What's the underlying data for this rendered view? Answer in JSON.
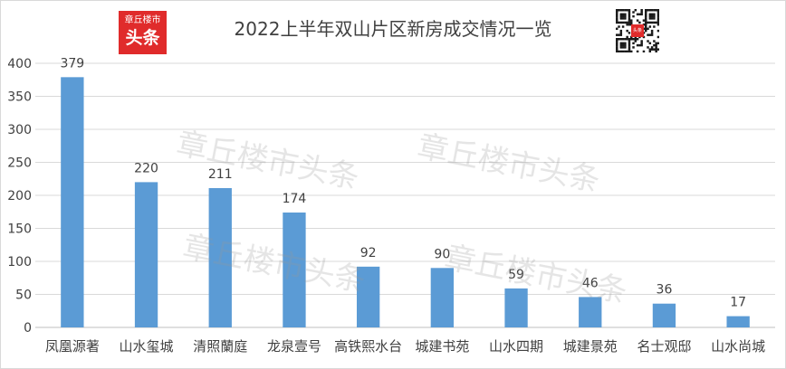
{
  "chart_data": {
    "type": "bar",
    "title": "2022上半年双山片区新房成交情况一览",
    "categories": [
      "凤凰源著",
      "山水玺城",
      "清照蘭庭",
      "龙泉壹号",
      "高铁熙水台",
      "城建书苑",
      "山水四期",
      "城建景苑",
      "名士观邸",
      "山水尚城"
    ],
    "values": [
      379,
      220,
      211,
      174,
      92,
      90,
      59,
      46,
      36,
      17
    ],
    "ylim": [
      0,
      400
    ],
    "yticks": [
      0,
      50,
      100,
      150,
      200,
      250,
      300,
      350,
      400
    ],
    "xlabel": "",
    "ylabel": "",
    "grid": true,
    "bar_color": "#5b9bd5"
  },
  "logo": {
    "line1": "章丘楼市",
    "line2": "头条"
  },
  "qr": {
    "center_text": "头条"
  },
  "watermark": {
    "text": "章丘楼市头条"
  }
}
